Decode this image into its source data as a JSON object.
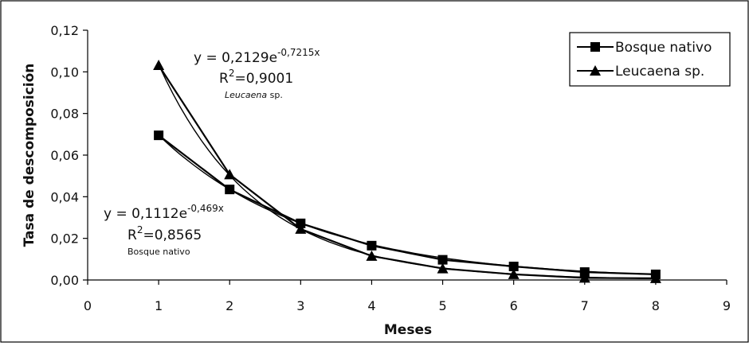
{
  "chart_data": {
    "type": "line",
    "xlabel": "Meses",
    "ylabel": "Tasa de descomposición",
    "xlim": [
      0,
      9
    ],
    "ylim": [
      0,
      0.12
    ],
    "x_ticks": [
      "0",
      "1",
      "2",
      "3",
      "4",
      "5",
      "6",
      "7",
      "8",
      "9"
    ],
    "y_ticks": [
      "0,00",
      "0,02",
      "0,04",
      "0,06",
      "0,08",
      "0,10",
      "0,12"
    ],
    "grid": false,
    "legend_position": "top-right",
    "series": [
      {
        "name": "Bosque nativo",
        "marker": "square",
        "x": [
          1,
          2,
          3,
          4,
          5,
          6,
          7,
          8
        ],
        "observed": [
          0.0695,
          0.0435,
          0.0272,
          0.0165,
          0.0097,
          0.0065,
          0.0038,
          0.0027
        ],
        "fit": {
          "a": 0.1112,
          "b": -0.469
        }
      },
      {
        "name": "Leucaena sp.",
        "marker": "triangle",
        "x": [
          1,
          2,
          3,
          4,
          5,
          6,
          7,
          8
        ],
        "observed": [
          0.1032,
          0.0507,
          0.0245,
          0.0115,
          0.0055,
          0.0027,
          0.001,
          0.0008
        ],
        "fit": {
          "a": 0.2129,
          "b": -0.7215
        }
      }
    ],
    "annotations": {
      "leucaena": {
        "eq_prefix": "y = 0,2129e",
        "eq_exp": "-0,7215x",
        "r2_prefix": "R",
        "r2_sup": "2",
        "r2_value": "=0,9001",
        "name_italic": "Leucaena",
        "name_rest": " sp."
      },
      "bosque": {
        "eq_prefix": "y = 0,1112e",
        "eq_exp": "-0,469x",
        "r2_prefix": "R",
        "r2_sup": "2",
        "r2_value": "=0,8565",
        "name": "Bosque nativo"
      }
    }
  }
}
